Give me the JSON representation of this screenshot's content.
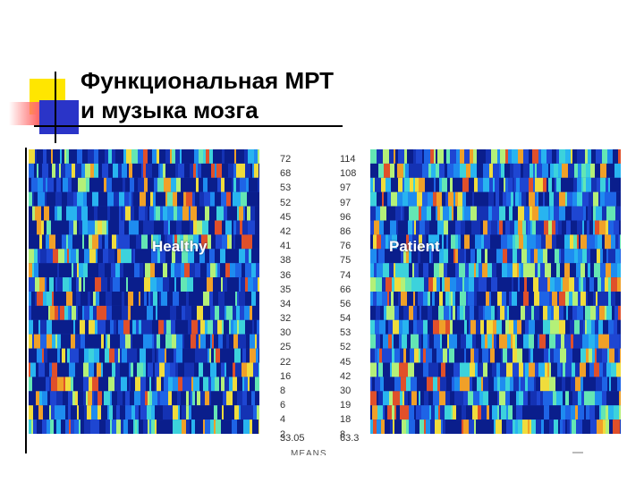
{
  "slide": {
    "title_line1": "Функциональная МРТ",
    "title_line2": "и музыка мозга",
    "panel_left_label": "Healthy",
    "panel_right_label": "Patient",
    "left_numbers": [
      "72",
      "68",
      "53",
      "52",
      "45",
      "42",
      "41",
      "38",
      "36",
      "35",
      "34",
      "32",
      "30",
      "25",
      "22",
      "16",
      "8",
      "6",
      "4",
      "2"
    ],
    "right_numbers": [
      "114",
      "108",
      "97",
      "97",
      "96",
      "86",
      "76",
      "75",
      "74",
      "66",
      "56",
      "54",
      "53",
      "52",
      "45",
      "42",
      "30",
      "19",
      "18",
      "8"
    ],
    "left_mean": "33.05",
    "right_mean": "63.3",
    "cut_caption": "MEANS",
    "colors": {
      "accent_yellow": "#ffe600",
      "accent_red": "#ff5050",
      "accent_blue": "#2a34c8",
      "heatmap_base": "#1e3cc8"
    }
  }
}
